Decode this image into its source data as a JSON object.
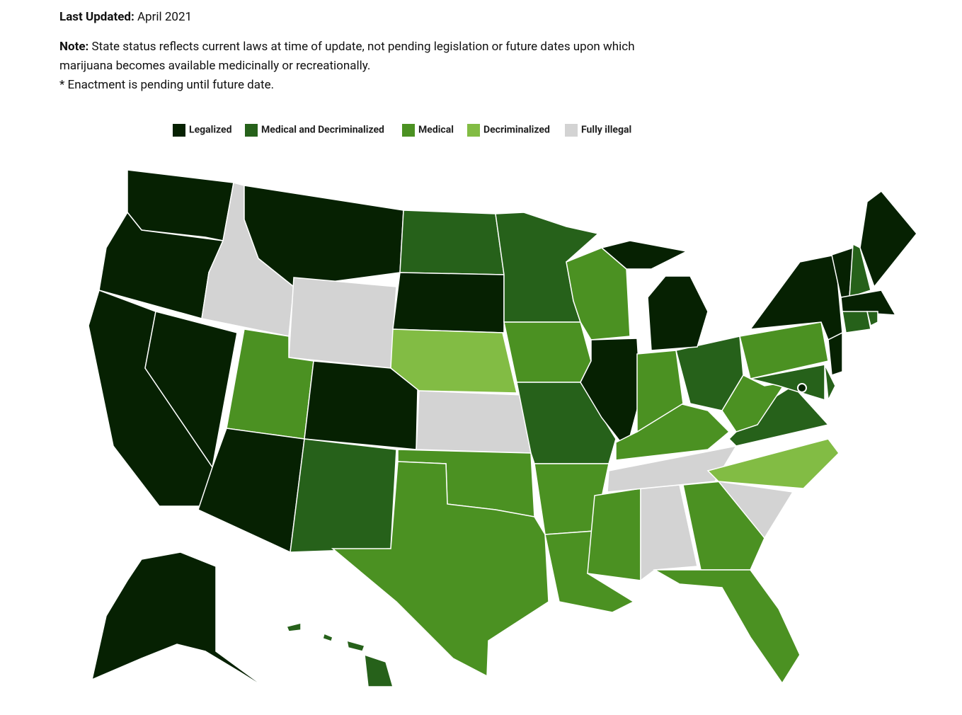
{
  "header": {
    "updated_label": "Last Updated:",
    "updated_value": "April 2021",
    "note_label": "Note:",
    "note_text": "State status reflects current laws at time of update, not pending legislation or future dates upon which marijuana becomes available medicinally or recreationally.",
    "footnote": "* Enactment is pending until future date."
  },
  "legend": [
    {
      "name": "Legalized",
      "color": "#062102"
    },
    {
      "name": "Medical and Decriminalized",
      "color": "#26611a"
    },
    {
      "name": "Medical",
      "color": "#4b9122"
    },
    {
      "name": "Decriminalized",
      "color": "#82bc44"
    },
    {
      "name": "Fully illegal",
      "color": "#d3d3d3"
    }
  ],
  "regions": [
    0,
    0,
    0,
    0,
    4,
    0,
    4,
    2,
    0,
    0,
    1,
    1,
    0,
    3,
    4,
    2,
    2,
    1,
    2,
    1,
    2,
    2,
    2,
    0,
    2,
    4,
    4,
    2,
    2,
    1,
    0,
    2,
    2,
    4,
    3,
    1,
    2,
    2,
    0,
    0,
    1,
    1,
    0,
    1,
    0,
    0,
    1,
    1,
    0,
    1,
    0
  ]
}
